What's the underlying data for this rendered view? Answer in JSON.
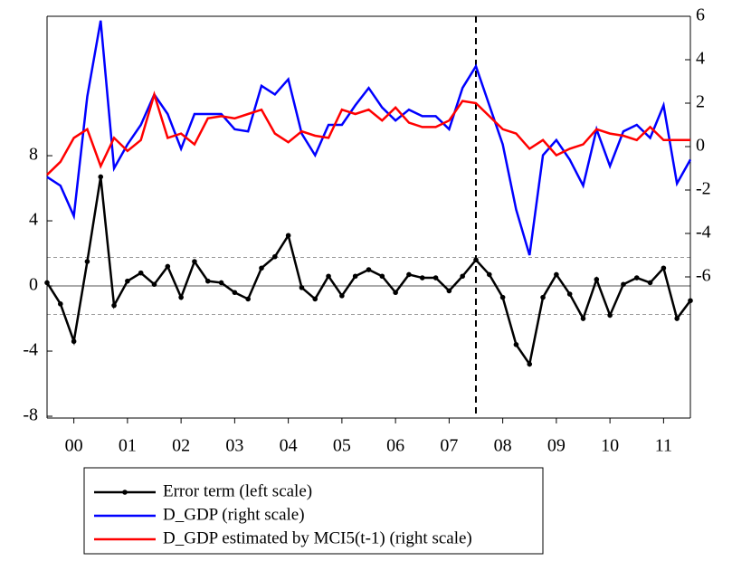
{
  "chart_data": {
    "type": "line",
    "x": [
      2000,
      2000.25,
      2000.5,
      2000.75,
      2001,
      2001.25,
      2001.5,
      2001.75,
      2002,
      2002.25,
      2002.5,
      2002.75,
      2003,
      2003.25,
      2003.5,
      2003.75,
      2004,
      2004.25,
      2004.5,
      2004.75,
      2005,
      2005.25,
      2005.5,
      2005.75,
      2006,
      2006.25,
      2006.5,
      2006.75,
      2007,
      2007.25,
      2007.5,
      2007.75,
      2008,
      2008.25,
      2008.5,
      2008.75,
      2009,
      2009.25,
      2009.5,
      2009.75,
      2010,
      2010.25,
      2010.5,
      2010.75,
      2011,
      2011.25,
      2011.5,
      2011.75,
      2012
    ],
    "xlim": [
      2000,
      2012
    ],
    "xticks": [
      {
        "value": 2000.5,
        "label": "00"
      },
      {
        "value": 2001.5,
        "label": "01"
      },
      {
        "value": 2002.5,
        "label": "02"
      },
      {
        "value": 2003.5,
        "label": "03"
      },
      {
        "value": 2004.5,
        "label": "04"
      },
      {
        "value": 2005.5,
        "label": "05"
      },
      {
        "value": 2006.5,
        "label": "06"
      },
      {
        "value": 2007.5,
        "label": "07"
      },
      {
        "value": 2008.5,
        "label": "08"
      },
      {
        "value": 2009.5,
        "label": "09"
      },
      {
        "value": 2010.5,
        "label": "10"
      },
      {
        "value": 2011.5,
        "label": "11"
      }
    ],
    "ylim": [
      -8.11,
      16.56
    ],
    "yticks": [
      -8,
      -4,
      0,
      4,
      8
    ],
    "y2lim": [
      -12.5,
      6
    ],
    "y2ticks": [
      -6,
      -4,
      -2,
      0,
      2,
      4,
      6
    ],
    "ref_lines": [
      -1.75,
      0,
      1.75
    ],
    "vline": 2008,
    "series": [
      {
        "name": "Error term (left scale)",
        "color": "#000000",
        "axis": "y",
        "markers": true,
        "values": [
          0.2,
          -1.1,
          -3.4,
          1.5,
          6.7,
          -1.2,
          0.3,
          0.8,
          0.1,
          1.2,
          -0.7,
          1.5,
          0.3,
          0.2,
          -0.4,
          -0.8,
          1.1,
          1.8,
          3.1,
          -0.1,
          -0.8,
          0.6,
          -0.6,
          0.6,
          1.0,
          0.6,
          -0.4,
          0.7,
          0.5,
          0.5,
          -0.3,
          0.6,
          1.6,
          0.7,
          -0.7,
          -3.6,
          -4.8,
          -0.7,
          0.7,
          -0.5,
          -2.0,
          0.4,
          -1.8,
          0.1,
          0.5,
          0.2,
          1.1,
          -2.0,
          -0.9
        ]
      },
      {
        "name": "D_GDP (right scale)",
        "color": "#0000ff",
        "axis": "y2",
        "markers": false,
        "values": [
          -1.4,
          -1.8,
          -3.2,
          2.3,
          5.8,
          -1.0,
          0.1,
          1.0,
          2.4,
          1.5,
          -0.1,
          1.5,
          1.5,
          1.5,
          0.8,
          0.7,
          2.8,
          2.4,
          3.1,
          0.6,
          -0.4,
          1.0,
          1.0,
          1.9,
          2.7,
          1.8,
          1.2,
          1.7,
          1.4,
          1.4,
          0.8,
          2.7,
          3.7,
          1.9,
          0.1,
          -2.9,
          -5.0,
          -0.4,
          0.3,
          -0.6,
          -1.8,
          0.8,
          -0.9,
          0.7,
          1.0,
          0.4,
          1.9,
          -1.7,
          -0.6
        ]
      },
      {
        "name": "D_GDP estimated by MCI5(t-1) (right scale)",
        "color": "#ff0000",
        "axis": "y2",
        "markers": false,
        "values": [
          -1.3,
          -0.7,
          0.4,
          0.8,
          -0.9,
          0.4,
          -0.2,
          0.3,
          2.4,
          0.4,
          0.6,
          0.1,
          1.3,
          1.4,
          1.3,
          1.5,
          1.7,
          0.6,
          0.2,
          0.7,
          0.5,
          0.4,
          1.7,
          1.5,
          1.7,
          1.2,
          1.8,
          1.1,
          0.9,
          0.9,
          1.2,
          2.1,
          2.0,
          1.4,
          0.8,
          0.6,
          -0.1,
          0.3,
          -0.4,
          -0.1,
          0.1,
          0.8,
          0.6,
          0.5,
          0.3,
          0.9,
          0.3,
          0.3,
          0.3
        ]
      }
    ]
  }
}
